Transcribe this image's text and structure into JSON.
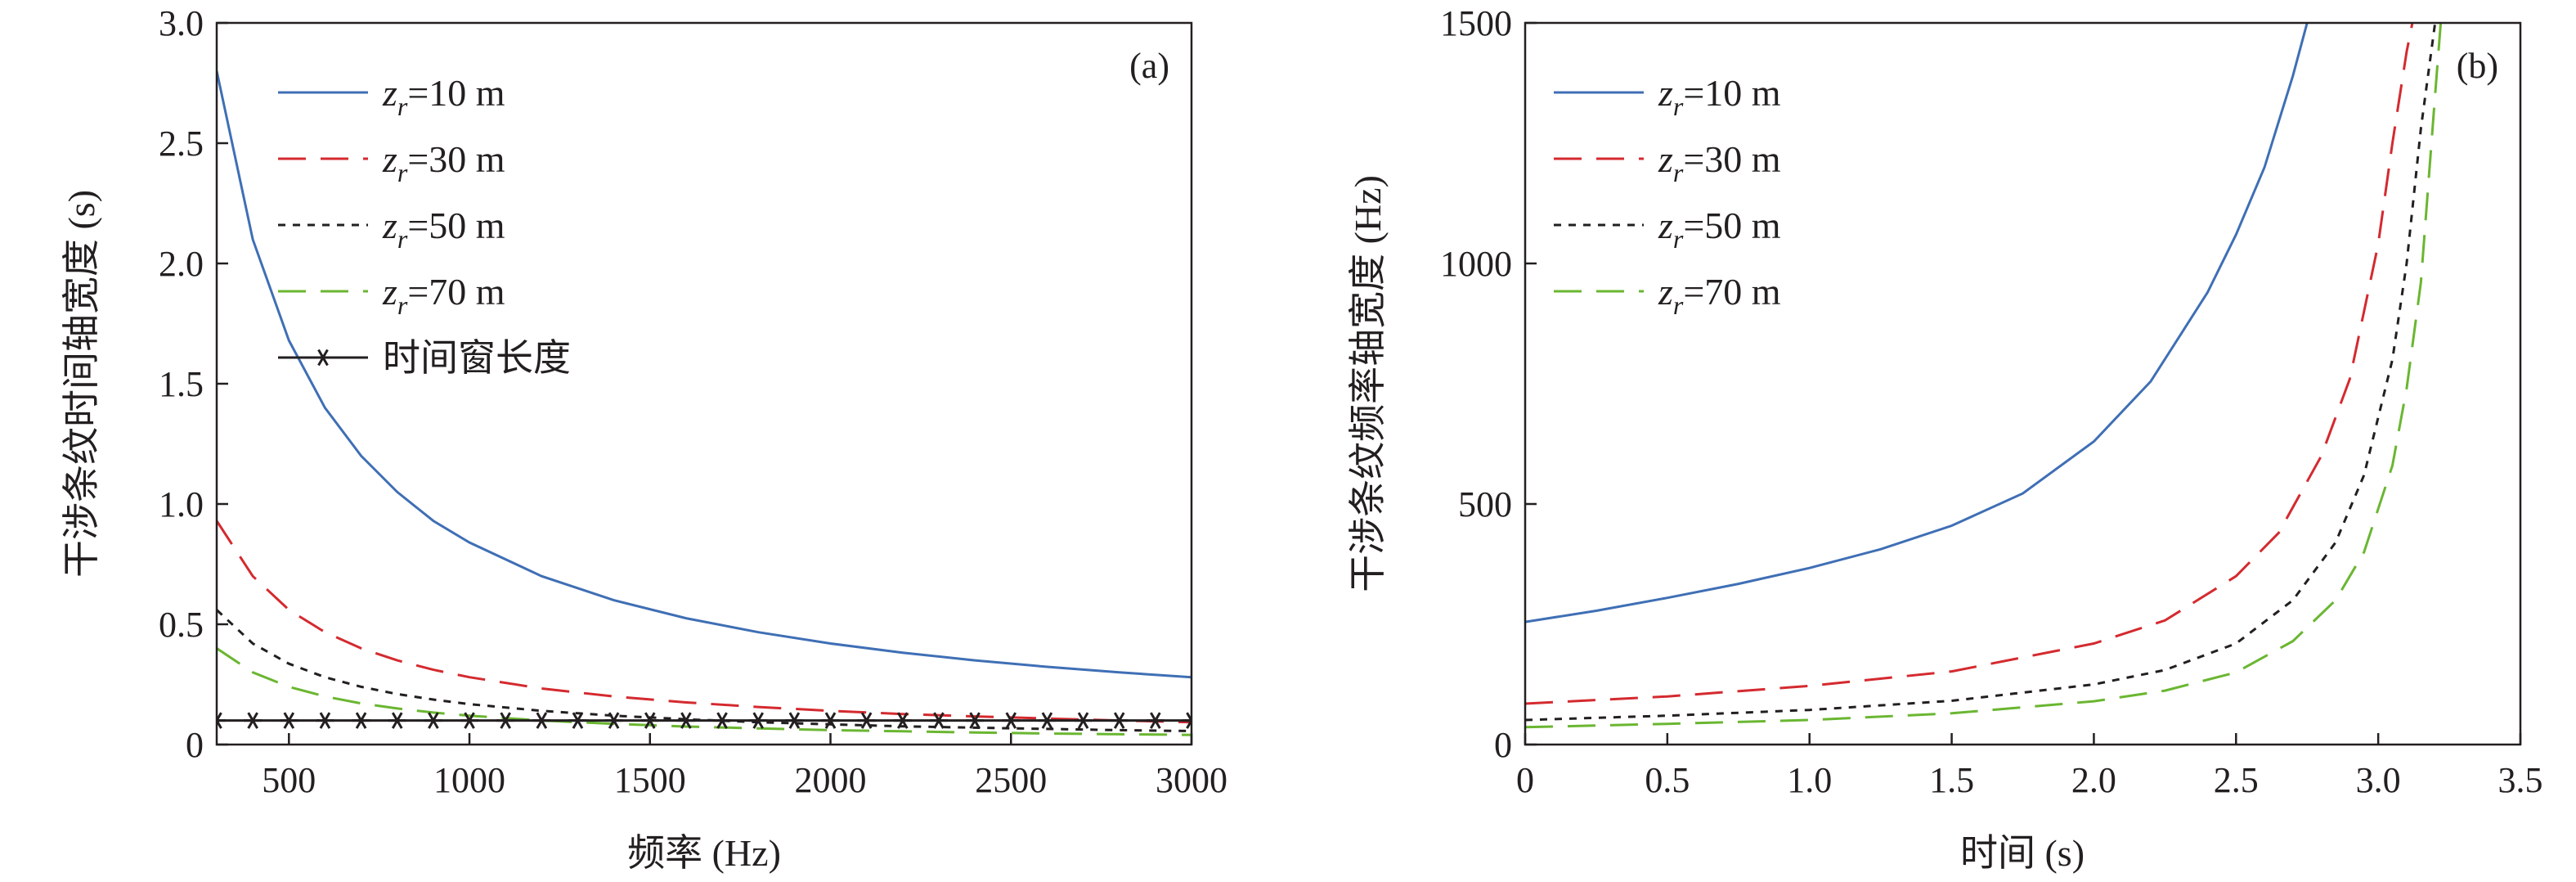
{
  "chart_data": [
    {
      "type": "line",
      "panel_label": "(a)",
      "xlabel": "频率 (Hz)",
      "ylabel": "干涉条纹时间轴宽度 (s)",
      "xlim": [
        300,
        3000
      ],
      "ylim": [
        0,
        3.0
      ],
      "x_ticks": [
        500,
        1000,
        1500,
        2000,
        2500,
        3000
      ],
      "x_tick_labels": [
        "500",
        "1000",
        "1500",
        "2000",
        "2500",
        "3000"
      ],
      "y_ticks": [
        0,
        0.5,
        1.0,
        1.5,
        2.0,
        2.5,
        3.0
      ],
      "y_tick_labels": [
        "0",
        "0.5",
        "1.0",
        "1.5",
        "2.0",
        "2.5",
        "3.0"
      ],
      "grid": false,
      "legend_position": "top-left",
      "x": [
        300,
        400,
        500,
        600,
        700,
        800,
        900,
        1000,
        1200,
        1400,
        1600,
        1800,
        2000,
        2200,
        2400,
        2600,
        2800,
        3000
      ],
      "series": [
        {
          "name_var": "z",
          "name_sub": "r",
          "name_rest": "=10 m",
          "color": "#3f6fb5",
          "dash": "solid",
          "values": [
            2.8,
            2.1,
            1.68,
            1.4,
            1.2,
            1.05,
            0.93,
            0.84,
            0.7,
            0.6,
            0.525,
            0.467,
            0.42,
            0.382,
            0.35,
            0.323,
            0.3,
            0.28
          ]
        },
        {
          "name_var": "z",
          "name_sub": "r",
          "name_rest": "=30 m",
          "color": "#d42a2f",
          "dash": "long",
          "values": [
            0.93,
            0.7,
            0.56,
            0.467,
            0.4,
            0.35,
            0.311,
            0.28,
            0.233,
            0.2,
            0.175,
            0.156,
            0.14,
            0.127,
            0.117,
            0.108,
            0.1,
            0.093
          ]
        },
        {
          "name_var": "z",
          "name_sub": "r",
          "name_rest": "=50 m",
          "color": "#231f20",
          "dash": "short",
          "values": [
            0.56,
            0.42,
            0.336,
            0.28,
            0.24,
            0.21,
            0.187,
            0.168,
            0.14,
            0.12,
            0.105,
            0.093,
            0.084,
            0.076,
            0.07,
            0.065,
            0.06,
            0.056
          ]
        },
        {
          "name_var": "z",
          "name_sub": "r",
          "name_rest": "=70 m",
          "color": "#6ab631",
          "dash": "long",
          "values": [
            0.4,
            0.3,
            0.24,
            0.2,
            0.171,
            0.15,
            0.133,
            0.12,
            0.1,
            0.086,
            0.075,
            0.067,
            0.06,
            0.055,
            0.05,
            0.046,
            0.043,
            0.04
          ]
        },
        {
          "name": "时间窗长度",
          "color": "#231f20",
          "dash": "solid",
          "marker": "star",
          "values": [
            0.1,
            0.1,
            0.1,
            0.1,
            0.1,
            0.1,
            0.1,
            0.1,
            0.1,
            0.1,
            0.1,
            0.1,
            0.1,
            0.1,
            0.1,
            0.1,
            0.1,
            0.1
          ],
          "marker_x": [
            300,
            400,
            500,
            600,
            700,
            800,
            900,
            1000,
            1100,
            1200,
            1300,
            1400,
            1500,
            1600,
            1700,
            1800,
            1900,
            2000,
            2100,
            2200,
            2300,
            2400,
            2500,
            2600,
            2700,
            2800,
            2900,
            3000
          ]
        }
      ]
    },
    {
      "type": "line",
      "panel_label": "(b)",
      "xlabel": "时间 (s)",
      "ylabel": "干涉条纹频率轴宽度 (Hz)",
      "xlim": [
        0,
        3.5
      ],
      "ylim": [
        0,
        1500
      ],
      "x_ticks": [
        0,
        0.5,
        1.0,
        1.5,
        2.0,
        2.5,
        3.0,
        3.5
      ],
      "x_tick_labels": [
        "0",
        "0.5",
        "1.0",
        "1.5",
        "2.0",
        "2.5",
        "3.0",
        "3.5"
      ],
      "y_ticks": [
        0,
        500,
        1000,
        1500
      ],
      "y_tick_labels": [
        "0",
        "500",
        "1000",
        "1500"
      ],
      "grid": false,
      "legend_position": "top-left",
      "series": [
        {
          "name_var": "z",
          "name_sub": "r",
          "name_rest": "=10 m",
          "color": "#3f6fb5",
          "dash": "solid",
          "x": [
            0,
            0.25,
            0.5,
            0.75,
            1.0,
            1.25,
            1.5,
            1.75,
            2.0,
            2.2,
            2.4,
            2.5,
            2.6,
            2.7,
            2.75
          ],
          "values": [
            255,
            278,
            305,
            334,
            367,
            406,
            455,
            522,
            630,
            755,
            940,
            1060,
            1200,
            1390,
            1500
          ]
        },
        {
          "name_var": "z",
          "name_sub": "r",
          "name_rest": "=30 m",
          "color": "#d42a2f",
          "dash": "long",
          "x": [
            0,
            0.5,
            1.0,
            1.5,
            2.0,
            2.25,
            2.5,
            2.65,
            2.8,
            2.9,
            3.0,
            3.05,
            3.1,
            3.12
          ],
          "values": [
            85,
            100,
            122,
            152,
            210,
            258,
            350,
            440,
            600,
            760,
            1040,
            1250,
            1440,
            1500
          ]
        },
        {
          "name_var": "z",
          "name_sub": "r",
          "name_rest": "=50 m",
          "color": "#231f20",
          "dash": "short",
          "x": [
            0,
            0.5,
            1.0,
            1.5,
            2.0,
            2.25,
            2.5,
            2.7,
            2.85,
            2.95,
            3.05,
            3.1,
            3.15,
            3.2
          ],
          "values": [
            51,
            60,
            72,
            91,
            125,
            155,
            210,
            300,
            420,
            560,
            800,
            1000,
            1280,
            1500
          ]
        },
        {
          "name_var": "z",
          "name_sub": "r",
          "name_rest": "=70 m",
          "color": "#6ab631",
          "dash": "long",
          "x": [
            0,
            0.5,
            1.0,
            1.5,
            2.0,
            2.25,
            2.5,
            2.7,
            2.85,
            2.95,
            3.05,
            3.1,
            3.15,
            3.2,
            3.22
          ],
          "values": [
            36,
            43,
            51,
            65,
            90,
            112,
            150,
            215,
            300,
            400,
            580,
            740,
            960,
            1350,
            1500
          ]
        }
      ]
    }
  ]
}
